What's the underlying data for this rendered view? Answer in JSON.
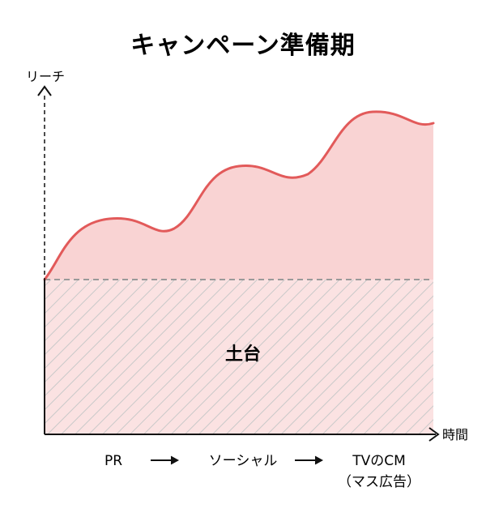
{
  "title": "キャンペーン準備期",
  "axes": {
    "y_label": "リーチ",
    "x_label": "時間"
  },
  "base_area_label": "土台",
  "phases": [
    {
      "label": "PR",
      "sub_label": ""
    },
    {
      "label": "ソーシャル",
      "sub_label": ""
    },
    {
      "label": "TVのCM",
      "sub_label": "（マス広告）"
    }
  ],
  "phase_arrows": 2,
  "colors": {
    "curve": "#e25a5a",
    "curve_fill": "#f9d3d3",
    "base_fill": "#fbe2e2",
    "hatch": "#c9c9c9",
    "axis": "#111111",
    "dashed": "#9a9a9a"
  }
}
